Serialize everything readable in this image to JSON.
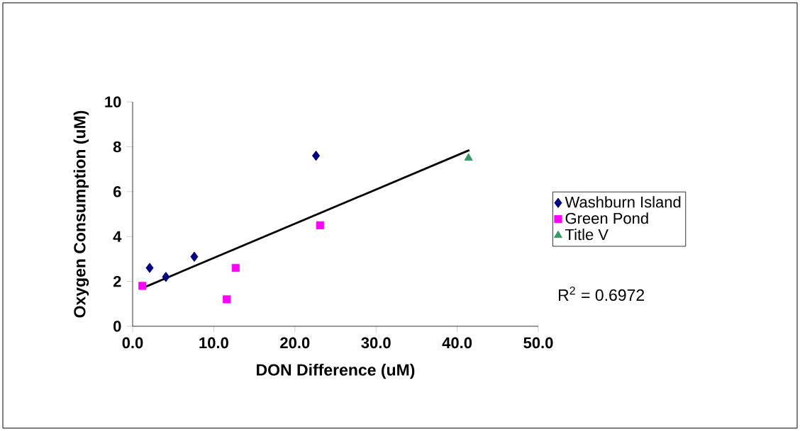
{
  "chart_data": {
    "type": "scatter",
    "xlabel": "DON Difference (uM)",
    "ylabel": "Oxygen Consumption (uM)",
    "xlim": [
      0,
      50
    ],
    "ylim": [
      0,
      10
    ],
    "xticks": [
      {
        "value": 0,
        "label": "0.0"
      },
      {
        "value": 10,
        "label": "10.0"
      },
      {
        "value": 20,
        "label": "20.0"
      },
      {
        "value": 30,
        "label": "30.0"
      },
      {
        "value": 40,
        "label": "40.0"
      },
      {
        "value": 50,
        "label": "50.0"
      }
    ],
    "yticks": [
      0,
      2,
      4,
      6,
      8,
      10
    ],
    "legend": "right",
    "grid": false,
    "series": [
      {
        "name": "Washburn Island",
        "color": "#000080",
        "marker": "diamond",
        "x": [
          2.1,
          4.1,
          7.6,
          22.6
        ],
        "values": [
          2.6,
          2.2,
          3.1,
          7.6
        ]
      },
      {
        "name": "Green Pond",
        "color": "#ff00ff",
        "marker": "square",
        "x": [
          1.2,
          11.6,
          12.7,
          23.1
        ],
        "values": [
          1.8,
          1.2,
          2.6,
          4.5
        ]
      },
      {
        "name": "Title V",
        "color": "#339966",
        "marker": "triangle",
        "x": [
          41.4
        ],
        "values": [
          7.5
        ]
      },
      {
        "type": "line",
        "color": "#000000",
        "marker": "none",
        "x": [
          1.2,
          41.5
        ],
        "values": [
          1.7,
          7.85
        ]
      }
    ],
    "annotations": [
      "R$^{2}$ = 0.6972"
    ]
  }
}
